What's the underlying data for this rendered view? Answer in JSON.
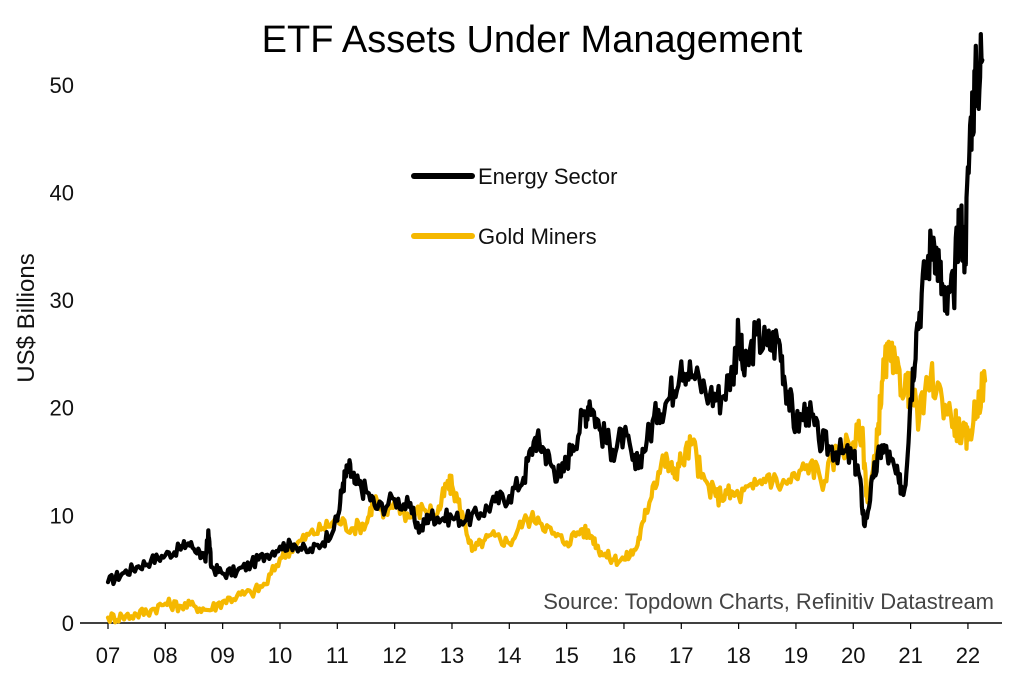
{
  "chart_data": {
    "type": "line",
    "title": "ETF Assets Under Management",
    "ylabel": "US$ Billions",
    "xlabel": "",
    "ylim": [
      0,
      55
    ],
    "yticks": [
      0,
      10,
      20,
      30,
      40,
      50
    ],
    "xlim": [
      2007,
      2022.35
    ],
    "xticks": [
      {
        "value": 2007,
        "label": "07"
      },
      {
        "value": 2008,
        "label": "08"
      },
      {
        "value": 2009,
        "label": "09"
      },
      {
        "value": 2010,
        "label": "10"
      },
      {
        "value": 2011,
        "label": "11"
      },
      {
        "value": 2012,
        "label": "12"
      },
      {
        "value": 2013,
        "label": "13"
      },
      {
        "value": 2014,
        "label": "14"
      },
      {
        "value": 2015,
        "label": "15"
      },
      {
        "value": 2016,
        "label": "16"
      },
      {
        "value": 2017,
        "label": "17"
      },
      {
        "value": 2018,
        "label": "18"
      },
      {
        "value": 2019,
        "label": "19"
      },
      {
        "value": 2020,
        "label": "20"
      },
      {
        "value": 2021,
        "label": "21"
      },
      {
        "value": 2022,
        "label": "22"
      }
    ],
    "grid": false,
    "legend_position": "upper-center",
    "source": "Source: Topdown Charts, Refinitiv Datastream",
    "series": [
      {
        "name": "Energy Sector",
        "color": "#000000",
        "points": [
          [
            2007.0,
            3.8
          ],
          [
            2007.25,
            4.6
          ],
          [
            2007.5,
            5.2
          ],
          [
            2007.75,
            5.8
          ],
          [
            2008.0,
            6.3
          ],
          [
            2008.25,
            6.9
          ],
          [
            2008.4,
            7.4
          ],
          [
            2008.6,
            6.6
          ],
          [
            2008.7,
            5.7
          ],
          [
            2008.75,
            8.6
          ],
          [
            2008.8,
            5.2
          ],
          [
            2009.0,
            4.6
          ],
          [
            2009.25,
            4.8
          ],
          [
            2009.5,
            5.5
          ],
          [
            2009.75,
            6.3
          ],
          [
            2010.0,
            7.1
          ],
          [
            2010.25,
            7.3
          ],
          [
            2010.5,
            6.6
          ],
          [
            2010.75,
            7.5
          ],
          [
            2011.0,
            9.5
          ],
          [
            2011.1,
            13.0
          ],
          [
            2011.2,
            14.4
          ],
          [
            2011.3,
            13.0
          ],
          [
            2011.5,
            12.3
          ],
          [
            2011.7,
            10.6
          ],
          [
            2012.0,
            11.5
          ],
          [
            2012.25,
            10.8
          ],
          [
            2012.45,
            8.6
          ],
          [
            2012.6,
            10.0
          ],
          [
            2012.75,
            9.8
          ],
          [
            2013.0,
            9.8
          ],
          [
            2013.25,
            9.6
          ],
          [
            2013.5,
            10.2
          ],
          [
            2013.75,
            11.3
          ],
          [
            2014.0,
            11.8
          ],
          [
            2014.25,
            13.5
          ],
          [
            2014.45,
            17.2
          ],
          [
            2014.6,
            16.2
          ],
          [
            2014.75,
            14.5
          ],
          [
            2014.9,
            13.6
          ],
          [
            2015.1,
            16.5
          ],
          [
            2015.3,
            19.3
          ],
          [
            2015.4,
            20.6
          ],
          [
            2015.6,
            17.8
          ],
          [
            2015.8,
            16.1
          ],
          [
            2016.0,
            17.5
          ],
          [
            2016.2,
            14.3
          ],
          [
            2016.4,
            17.0
          ],
          [
            2016.6,
            19.8
          ],
          [
            2016.8,
            21.0
          ],
          [
            2017.0,
            24.3
          ],
          [
            2017.2,
            23.0
          ],
          [
            2017.5,
            21.2
          ],
          [
            2017.7,
            20.9
          ],
          [
            2017.9,
            23.5
          ],
          [
            2018.0,
            26.8
          ],
          [
            2018.1,
            23.0
          ],
          [
            2018.3,
            26.8
          ],
          [
            2018.5,
            25.8
          ],
          [
            2018.7,
            26.3
          ],
          [
            2018.85,
            21.5
          ],
          [
            2019.0,
            18.3
          ],
          [
            2019.2,
            19.9
          ],
          [
            2019.4,
            17.0
          ],
          [
            2019.6,
            16.3
          ],
          [
            2019.8,
            15.8
          ],
          [
            2020.0,
            15.3
          ],
          [
            2020.1,
            13.8
          ],
          [
            2020.2,
            9.0
          ],
          [
            2020.35,
            13.5
          ],
          [
            2020.5,
            16.5
          ],
          [
            2020.65,
            15.1
          ],
          [
            2020.8,
            13.0
          ],
          [
            2020.9,
            12.6
          ],
          [
            2021.0,
            20.8
          ],
          [
            2021.1,
            27.0
          ],
          [
            2021.25,
            32.4
          ],
          [
            2021.4,
            35.8
          ],
          [
            2021.5,
            33.0
          ],
          [
            2021.6,
            29.0
          ],
          [
            2021.75,
            30.8
          ],
          [
            2021.85,
            38.0
          ],
          [
            2021.95,
            34.5
          ],
          [
            2022.05,
            47.0
          ],
          [
            2022.15,
            50.6
          ],
          [
            2022.25,
            52.3
          ]
        ]
      },
      {
        "name": "Gold Miners",
        "color": "#f5b800",
        "points": [
          [
            2007.0,
            0.5
          ],
          [
            2007.25,
            0.6
          ],
          [
            2007.5,
            0.8
          ],
          [
            2007.75,
            1.2
          ],
          [
            2008.0,
            1.8
          ],
          [
            2008.25,
            1.6
          ],
          [
            2008.5,
            1.6
          ],
          [
            2008.75,
            1.2
          ],
          [
            2009.0,
            2.0
          ],
          [
            2009.25,
            2.5
          ],
          [
            2009.5,
            2.8
          ],
          [
            2009.75,
            3.6
          ],
          [
            2010.0,
            6.0
          ],
          [
            2010.25,
            7.1
          ],
          [
            2010.5,
            8.2
          ],
          [
            2010.75,
            8.8
          ],
          [
            2011.0,
            9.6
          ],
          [
            2011.25,
            8.8
          ],
          [
            2011.5,
            9.2
          ],
          [
            2011.65,
            11.7
          ],
          [
            2011.8,
            9.8
          ],
          [
            2012.0,
            11.5
          ],
          [
            2012.25,
            9.8
          ],
          [
            2012.5,
            10.6
          ],
          [
            2012.75,
            10.2
          ],
          [
            2012.9,
            12.6
          ],
          [
            2013.0,
            12.8
          ],
          [
            2013.2,
            9.8
          ],
          [
            2013.35,
            6.7
          ],
          [
            2013.55,
            7.6
          ],
          [
            2013.75,
            8.1
          ],
          [
            2014.0,
            7.4
          ],
          [
            2014.25,
            9.5
          ],
          [
            2014.5,
            9.8
          ],
          [
            2014.75,
            8.3
          ],
          [
            2015.0,
            7.5
          ],
          [
            2015.25,
            8.7
          ],
          [
            2015.45,
            8.0
          ],
          [
            2015.6,
            6.6
          ],
          [
            2015.8,
            5.9
          ],
          [
            2016.0,
            5.9
          ],
          [
            2016.2,
            6.8
          ],
          [
            2016.35,
            9.5
          ],
          [
            2016.5,
            12.7
          ],
          [
            2016.7,
            15.3
          ],
          [
            2016.85,
            13.9
          ],
          [
            2017.0,
            15.0
          ],
          [
            2017.2,
            16.8
          ],
          [
            2017.35,
            13.5
          ],
          [
            2017.6,
            11.8
          ],
          [
            2017.8,
            12.0
          ],
          [
            2018.0,
            11.8
          ],
          [
            2018.25,
            12.5
          ],
          [
            2018.5,
            13.7
          ],
          [
            2018.75,
            12.8
          ],
          [
            2019.0,
            13.5
          ],
          [
            2019.25,
            14.8
          ],
          [
            2019.5,
            13.2
          ],
          [
            2019.75,
            16.4
          ],
          [
            2020.0,
            16.8
          ],
          [
            2020.15,
            18.0
          ],
          [
            2020.25,
            11.2
          ],
          [
            2020.4,
            15.8
          ],
          [
            2020.5,
            22.4
          ],
          [
            2020.6,
            25.0
          ],
          [
            2020.75,
            23.3
          ],
          [
            2020.9,
            22.0
          ],
          [
            2021.0,
            21.5
          ],
          [
            2021.15,
            19.0
          ],
          [
            2021.35,
            22.9
          ],
          [
            2021.55,
            20.8
          ],
          [
            2021.75,
            18.8
          ],
          [
            2021.9,
            17.5
          ],
          [
            2022.0,
            17.0
          ],
          [
            2022.15,
            20.3
          ],
          [
            2022.3,
            22.5
          ]
        ]
      }
    ]
  }
}
